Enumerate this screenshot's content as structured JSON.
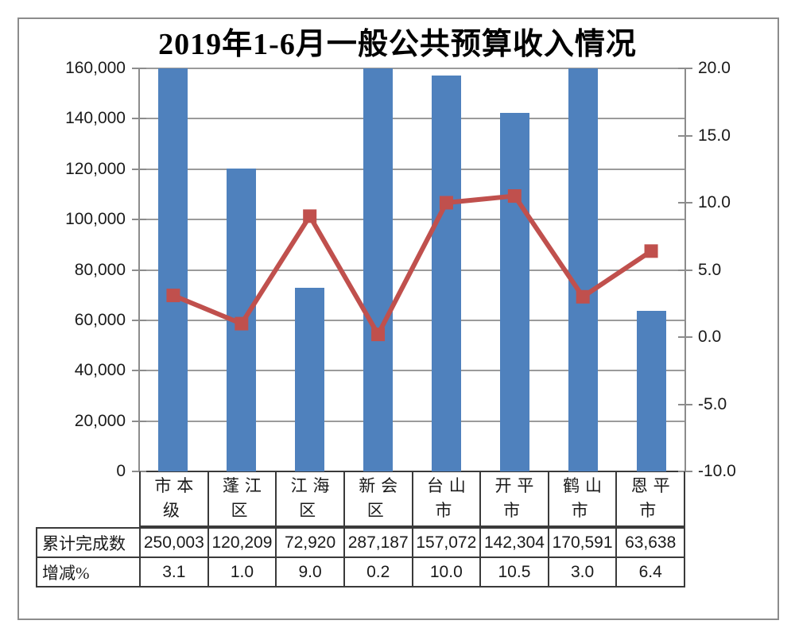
{
  "title": "2019年1-6月一般公共预算收入情况",
  "colors": {
    "bar": "#4f81bd",
    "line": "#c0504d",
    "gridline": "#9b9b9b",
    "axis": "#8c8c8c",
    "x_axis": "#3a3a3a",
    "table_border": "#3a3a3a",
    "frame": "#8c8c8c"
  },
  "chart_data": {
    "type": "combo",
    "title": "2019年1-6月一般公共预算收入情况",
    "categories": [
      "市本级",
      "蓬江区",
      "江海区",
      "新会区",
      "台山市",
      "开平市",
      "鹤山市",
      "恩平市"
    ],
    "series": [
      {
        "name": "累计完成数",
        "type": "bar",
        "axis": "left",
        "values": [
          250003,
          120209,
          72920,
          287187,
          157072,
          142304,
          170591,
          63638
        ]
      },
      {
        "name": "增减%",
        "type": "line",
        "axis": "right",
        "values": [
          3.1,
          1.0,
          9.0,
          0.2,
          10.0,
          10.5,
          3.0,
          6.4
        ]
      }
    ],
    "left_axis": {
      "min": 0,
      "max": 160000,
      "step": 20000,
      "tick_labels": [
        "0",
        "20,000",
        "40,000",
        "60,000",
        "80,000",
        "100,000",
        "120,000",
        "140,000",
        "160,000"
      ]
    },
    "right_axis": {
      "min": -10,
      "max": 20,
      "step": 5,
      "tick_labels": [
        "-10.0",
        "-5.0",
        "0.0",
        "5.0",
        "10.0",
        "15.0",
        "20.0"
      ]
    },
    "grid": "horizontal",
    "legend": "none",
    "bars_clipped_at_axis_max": true,
    "data_table": {
      "rows": [
        {
          "label": "累计完成数",
          "values": [
            "250,003",
            "120,209",
            "72,920",
            "287,187",
            "157,072",
            "142,304",
            "170,591",
            "63,638"
          ]
        },
        {
          "label": "增减%",
          "values": [
            "3.1",
            "1.0",
            "9.0",
            "0.2",
            "10.0",
            "10.5",
            "3.0",
            "6.4"
          ]
        }
      ]
    }
  }
}
